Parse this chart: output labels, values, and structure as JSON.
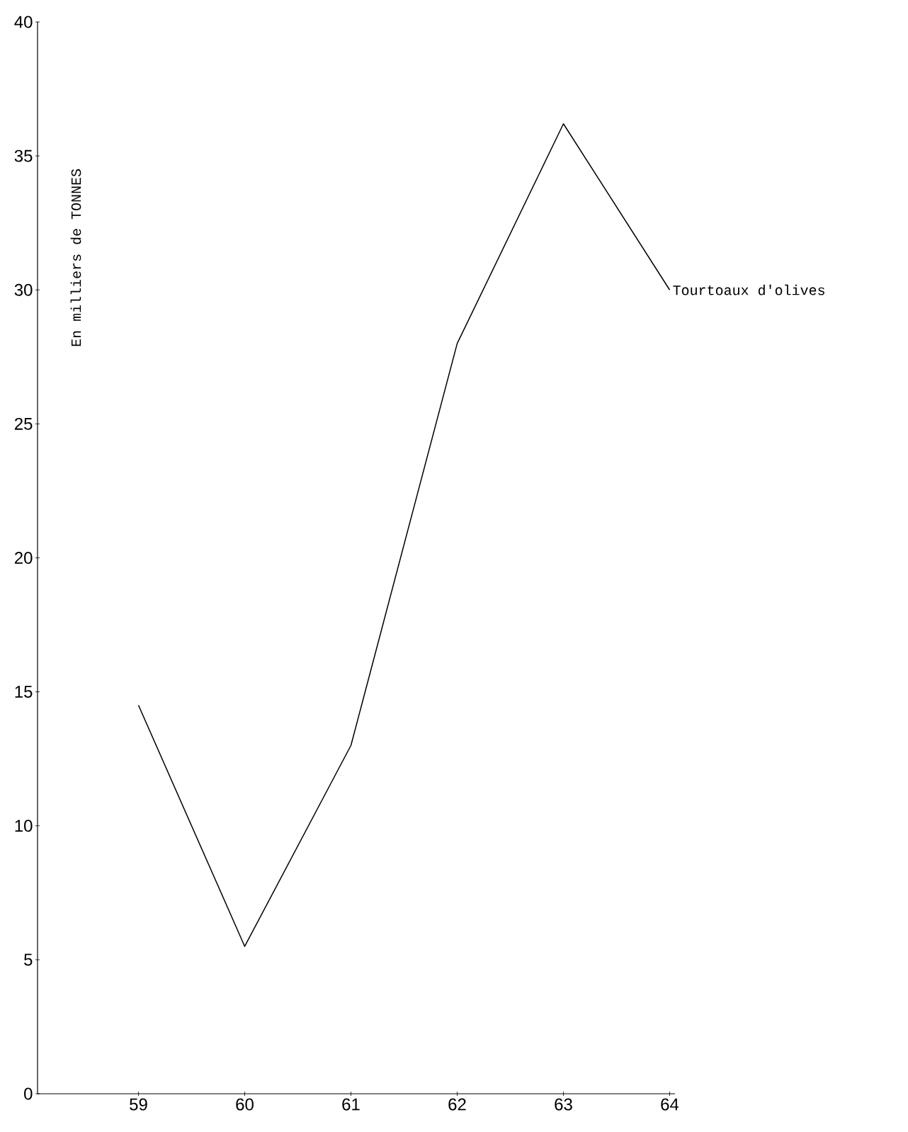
{
  "chart_data": {
    "type": "line",
    "ylabel": "En milliers de TONNES",
    "x": [
      59,
      60,
      61,
      62,
      63,
      64
    ],
    "series": [
      {
        "name": "Tourtoaux d'olives",
        "color": "#000000",
        "values": [
          14.5,
          5.5,
          13,
          28,
          36.2,
          30
        ]
      }
    ],
    "xlim": [
      58.05,
      64.05
    ],
    "ylim": [
      0,
      40
    ],
    "xticks": [
      59,
      60,
      61,
      62,
      63,
      64
    ],
    "yticks": [
      0,
      5,
      10,
      15,
      20,
      25,
      30,
      35,
      40
    ],
    "grid": false,
    "legend": false,
    "marker": "none",
    "line_style": "solid"
  }
}
